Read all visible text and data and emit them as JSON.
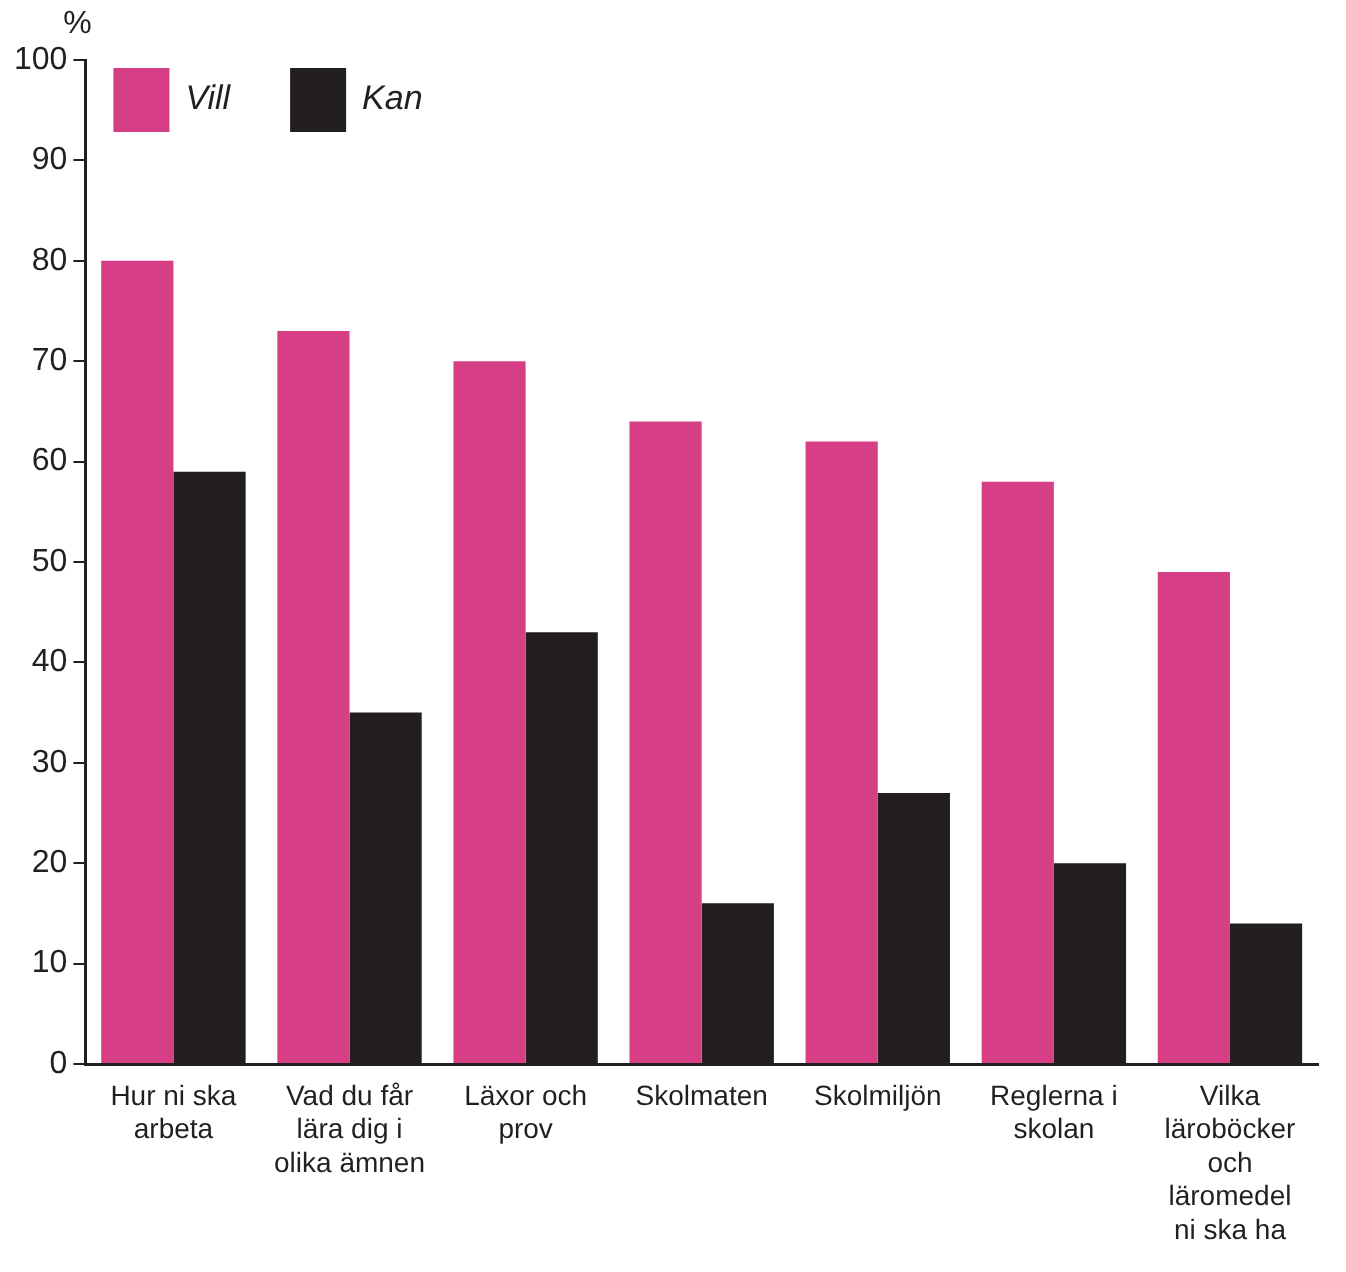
{
  "chart_data": {
    "type": "bar",
    "ylabel": "%",
    "categories": [
      "Hur ni ska arbeta",
      "Vad du får lära dig i olika ämnen",
      "Läxor och prov",
      "Skolmaten",
      "Skolmiljön",
      "Reglerna i skolan",
      "Vilka läroböcker och läromedel ni ska ha"
    ],
    "series": [
      {
        "name": "Vill",
        "color": "#d63f85",
        "values": [
          80,
          73,
          70,
          64,
          62,
          58,
          49
        ]
      },
      {
        "name": "Kan",
        "color": "#231f20",
        "values": [
          59,
          35,
          43,
          16,
          27,
          20,
          14
        ]
      }
    ],
    "ylim": [
      0,
      100
    ],
    "yticks": [
      0,
      10,
      20,
      30,
      40,
      50,
      60,
      70,
      80,
      90,
      100
    ],
    "grid": false,
    "legend": "top left"
  }
}
